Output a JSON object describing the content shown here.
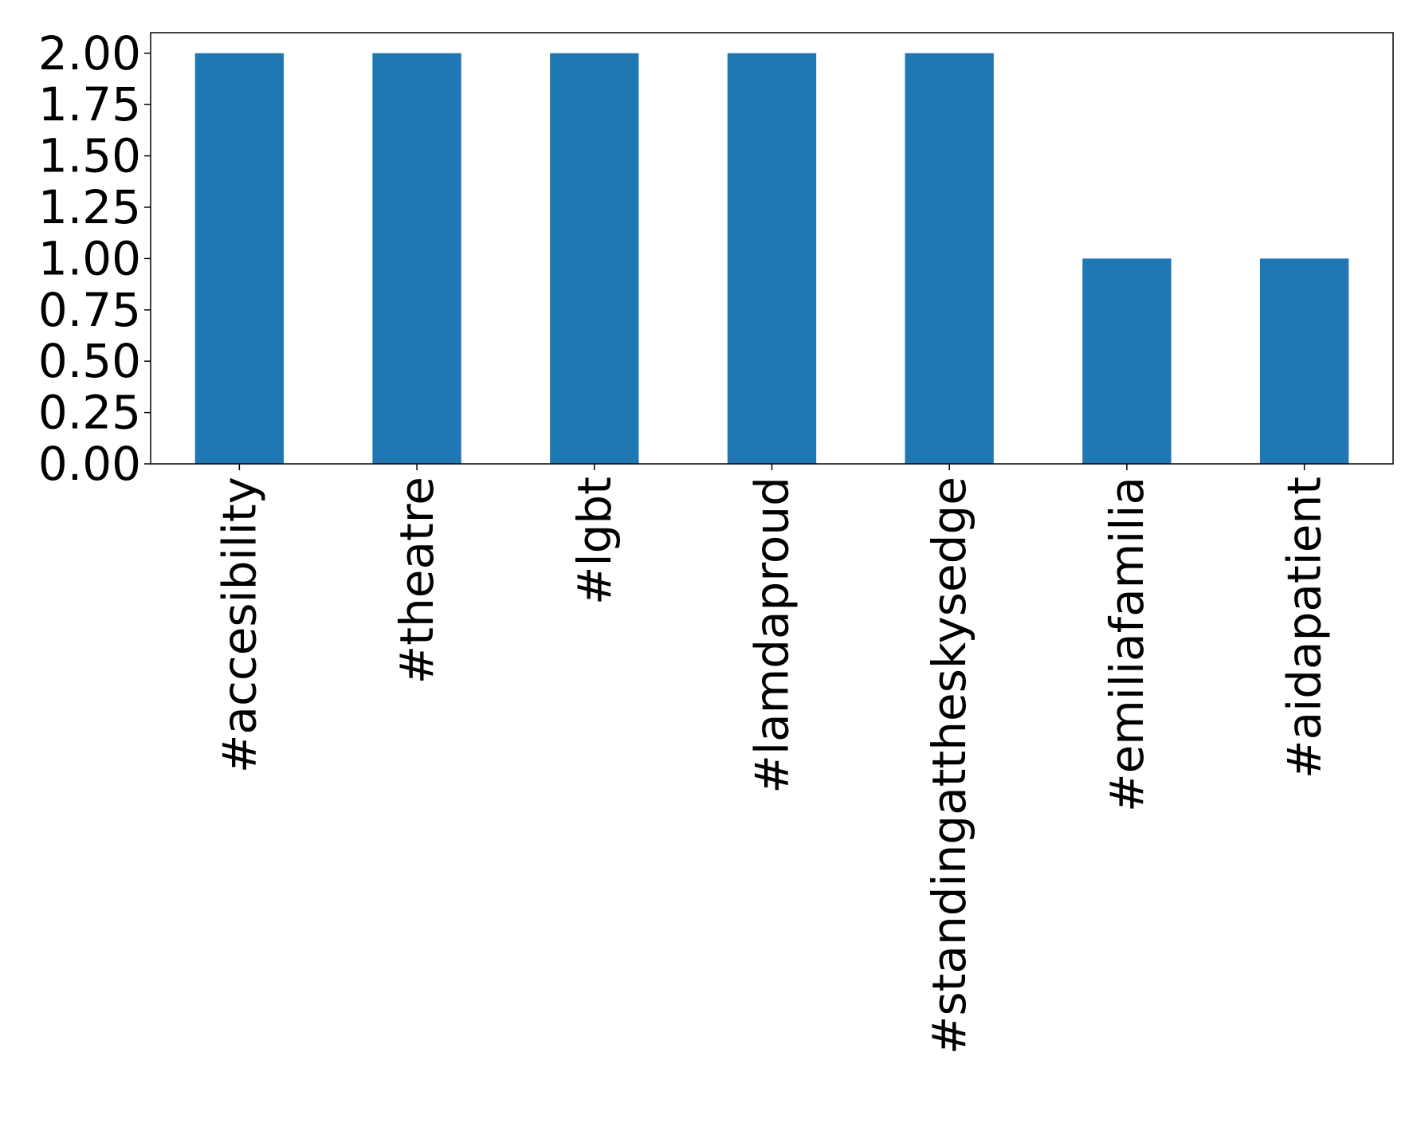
{
  "chart_data": {
    "type": "bar",
    "categories": [
      "#accesibility",
      "#theatre",
      "#lgbt",
      "#lamdaproud",
      "#standingattheskysedge",
      "#emiliafamilia",
      "#aidapatient"
    ],
    "values": [
      2,
      2,
      2,
      2,
      2,
      1,
      1
    ],
    "color": "#1f77b4",
    "ylim": [
      0,
      2.1
    ],
    "yticks": [
      {
        "value": 0,
        "label": "0.00"
      },
      {
        "value": 0.25,
        "label": "0.25"
      },
      {
        "value": 0.5,
        "label": "0.50"
      },
      {
        "value": 0.75,
        "label": "0.75"
      },
      {
        "value": 1,
        "label": "1.00"
      },
      {
        "value": 1.25,
        "label": "1.25"
      },
      {
        "value": 1.5,
        "label": "1.50"
      },
      {
        "value": 1.75,
        "label": "1.75"
      },
      {
        "value": 2,
        "label": "2.00"
      }
    ],
    "grid": false
  }
}
